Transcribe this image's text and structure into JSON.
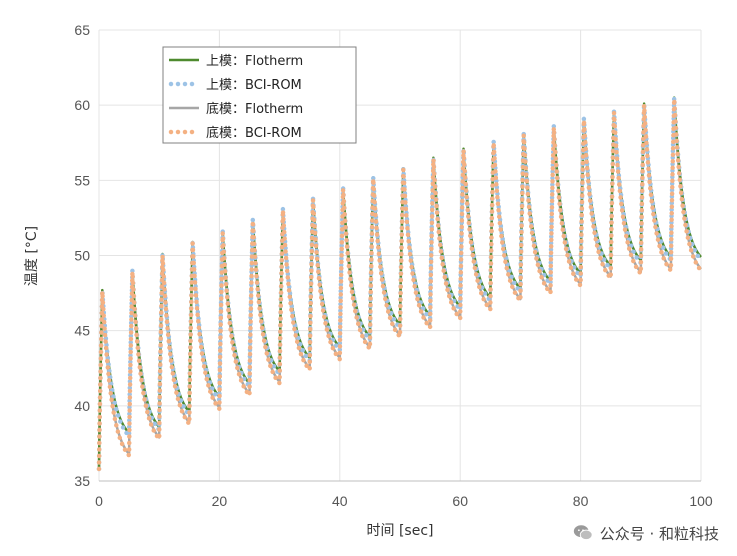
{
  "chart_data": {
    "type": "line",
    "title": "",
    "xlabel": "时间 [sec]",
    "ylabel": "温度 [°C]",
    "xlim": [
      0,
      100
    ],
    "ylim": [
      35,
      65
    ],
    "xticks": [
      0,
      20,
      40,
      60,
      80,
      100
    ],
    "yticks": [
      35,
      40,
      45,
      50,
      55,
      60,
      65
    ],
    "grid": true,
    "legend_position": "top-left",
    "pulse_period_sec": 5,
    "series": [
      {
        "name": "上模：Flotherm",
        "style": "solid",
        "color": "#4e8a2e",
        "peaks": [
          47.7,
          49.0,
          50.1,
          50.9,
          51.6,
          52.4,
          53.1,
          53.8,
          54.5,
          55.2,
          55.8,
          56.5,
          57.1,
          57.6,
          58.1,
          58.6,
          59.1,
          59.6,
          60.1,
          60.5
        ],
        "troughs": [
          38.2,
          38.6,
          39.6,
          40.6,
          41.5,
          42.3,
          43.2,
          43.9,
          44.6,
          45.4,
          46.0,
          46.6,
          47.2,
          47.8,
          48.3,
          48.8,
          49.3,
          49.7
        ]
      },
      {
        "name": "上模：BCI-ROM",
        "style": "dotted",
        "color": "#9dc3e6",
        "peaks": [
          47.7,
          49.0,
          50.1,
          50.9,
          51.6,
          52.4,
          53.1,
          53.8,
          54.5,
          55.2,
          55.8,
          56.5,
          57.1,
          57.6,
          58.1,
          58.6,
          59.1,
          59.6,
          60.1,
          60.5
        ],
        "troughs": [
          38.0,
          38.4,
          39.4,
          40.4,
          41.3,
          42.1,
          43.0,
          43.7,
          44.4,
          45.2,
          45.8,
          46.4,
          47.0,
          47.6,
          48.1,
          48.6,
          49.1,
          49.5
        ]
      },
      {
        "name": "底模：Flotherm",
        "style": "solid",
        "color": "#a6a6a6",
        "peaks": [
          47.5,
          48.8,
          49.9,
          50.7,
          51.4,
          52.2,
          52.9,
          53.6,
          54.3,
          55.0,
          55.6,
          56.3,
          56.9,
          57.4,
          57.9,
          58.4,
          58.9,
          59.4,
          59.9,
          60.3
        ],
        "troughs": [
          36.8,
          37.9,
          38.9,
          39.9,
          40.8,
          41.6,
          42.5,
          43.2,
          43.9,
          44.7,
          45.3,
          45.9,
          46.5,
          47.1,
          47.6,
          48.1,
          48.6,
          48.9
        ]
      },
      {
        "name": "底模：BCI-ROM",
        "style": "dotted",
        "color": "#f4b183",
        "peaks": [
          47.6,
          48.9,
          50.0,
          50.8,
          51.5,
          52.3,
          53.0,
          53.7,
          54.4,
          55.1,
          55.7,
          56.4,
          57.0,
          57.5,
          58.0,
          58.5,
          59.0,
          59.5,
          60.0,
          60.4
        ],
        "troughs": [
          36.7,
          37.8,
          38.8,
          39.8,
          40.7,
          41.5,
          42.4,
          43.1,
          43.8,
          44.6,
          45.2,
          45.8,
          46.4,
          47.0,
          47.5,
          48.0,
          48.5,
          48.8
        ]
      }
    ],
    "start_value": 35.8
  },
  "watermark": {
    "text": "公众号 · 和粒科技"
  }
}
